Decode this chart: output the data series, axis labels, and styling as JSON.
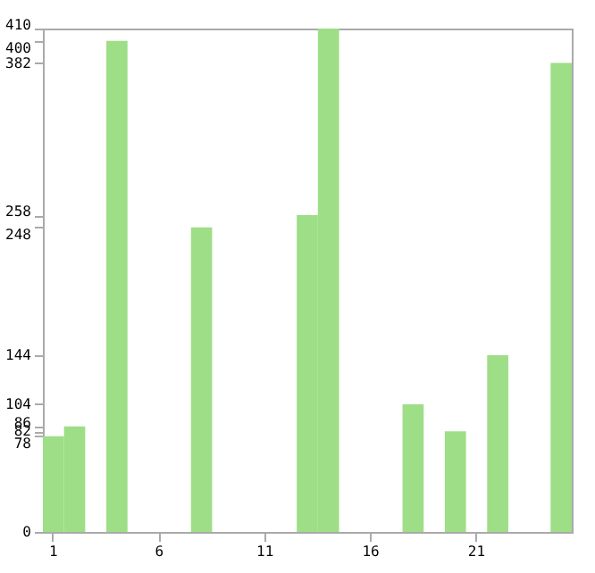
{
  "chart_data": {
    "type": "bar",
    "categories": [
      "1",
      null,
      null,
      null,
      null,
      "6",
      null,
      null,
      null,
      null,
      "11",
      null,
      null,
      null,
      null,
      "16",
      null,
      null,
      null,
      null,
      "21",
      null,
      null,
      null,
      null
    ],
    "values": [
      78,
      86,
      0,
      400,
      0,
      0,
      0,
      248,
      0,
      0,
      0,
      0,
      258,
      410,
      0,
      0,
      0,
      104,
      0,
      82,
      0,
      144,
      0,
      0,
      382
    ],
    "color": "#9ede86",
    "ylim": [
      0,
      410
    ],
    "yticks": [
      0,
      78,
      82,
      86,
      104,
      144,
      248,
      258,
      382,
      400,
      410
    ],
    "grid": false
  }
}
